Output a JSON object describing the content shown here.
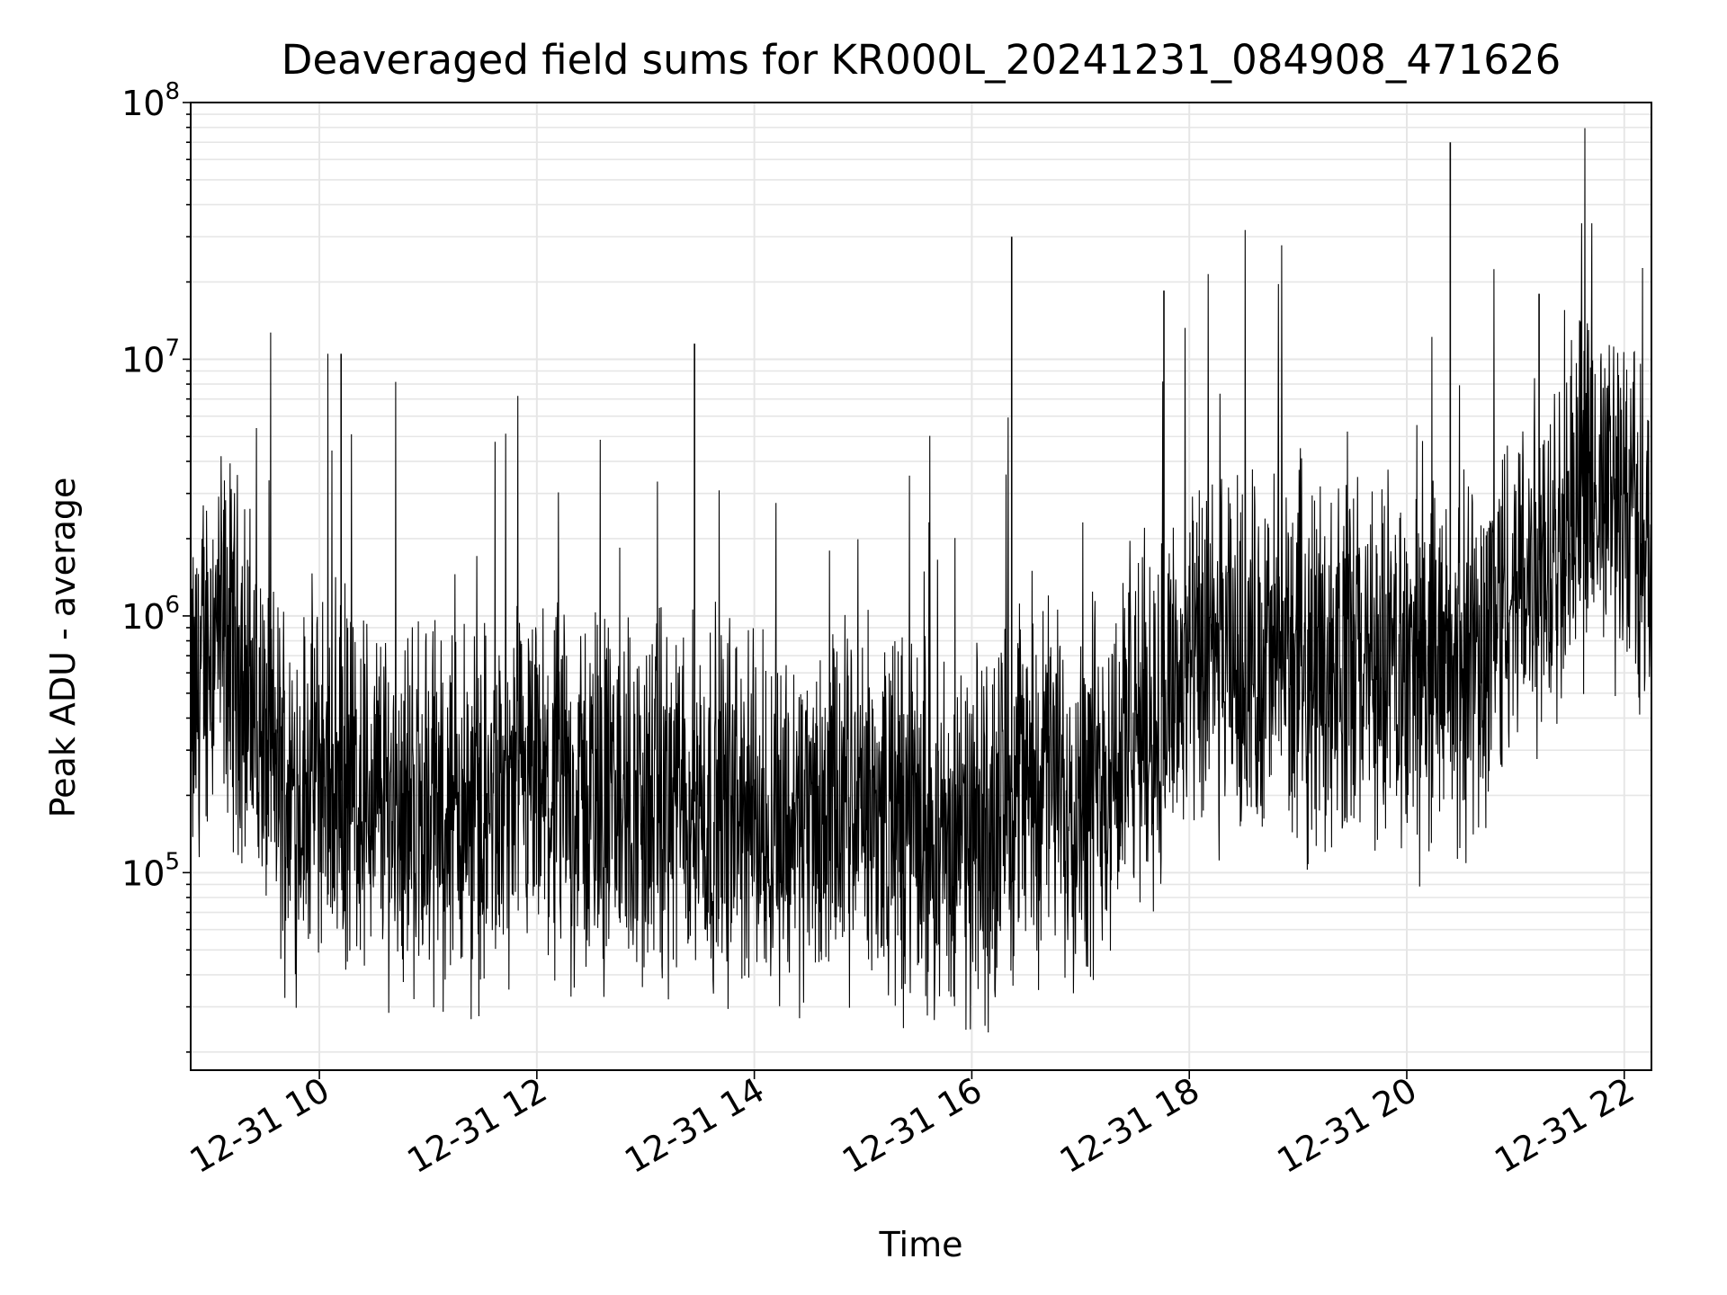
{
  "chart_data": {
    "type": "line",
    "title": "Deaveraged field sums for KR000L_20241231_084908_471626",
    "xlabel": "Time",
    "ylabel": "Peak ADU - average",
    "y_scale": "log",
    "ylim": [
      17000,
      100000000
    ],
    "xlim": [
      "2024-12-31 08:49",
      "2024-12-31 22:15"
    ],
    "x_ticks": [
      "12-31 10",
      "12-31 12",
      "12-31 14",
      "12-31 16",
      "12-31 18",
      "12-31 20",
      "12-31 22"
    ],
    "y_ticks": [
      {
        "base": "10",
        "exp": "5"
      },
      {
        "base": "10",
        "exp": "6"
      },
      {
        "base": "10",
        "exp": "7"
      },
      {
        "base": "10",
        "exp": "8"
      }
    ],
    "grid": true,
    "line_color": "#000000",
    "series": [
      {
        "x": [
          "2024-12-31 08:50",
          "2024-12-31 09:00",
          "2024-12-31 09:15",
          "2024-12-31 09:30",
          "2024-12-31 09:45",
          "2024-12-31 10:00",
          "2024-12-31 10:30",
          "2024-12-31 11:00",
          "2024-12-31 11:30",
          "2024-12-31 12:00",
          "2024-12-31 12:30",
          "2024-12-31 13:00",
          "2024-12-31 13:30",
          "2024-12-31 14:00",
          "2024-12-31 14:30",
          "2024-12-31 15:00",
          "2024-12-31 15:30",
          "2024-12-31 16:00",
          "2024-12-31 16:30",
          "2024-12-31 17:00",
          "2024-12-31 17:30",
          "2024-12-31 18:00",
          "2024-12-31 18:30",
          "2024-12-31 19:00",
          "2024-12-31 19:30",
          "2024-12-31 20:00",
          "2024-12-31 20:30",
          "2024-12-31 21:00",
          "2024-12-31 21:30",
          "2024-12-31 22:00",
          "2024-12-31 22:15"
        ],
        "y": [
          400000,
          900000,
          700000,
          300000,
          200000,
          250000,
          200000,
          180000,
          170000,
          190000,
          200000,
          180000,
          190000,
          170000,
          160000,
          180000,
          150000,
          120000,
          250000,
          200000,
          350000,
          600000,
          650000,
          700000,
          650000,
          600000,
          600000,
          1200000,
          2500000,
          3000000,
          1500000
        ]
      }
    ],
    "spikes": [
      {
        "x": "2024-12-31 16:22",
        "y": 30000000
      },
      {
        "x": "2024-12-31 20:24",
        "y": 70000000
      },
      {
        "x": "2024-12-31 13:27",
        "y": 11500000
      },
      {
        "x": "2024-12-31 17:46",
        "y": 18500000
      },
      {
        "x": "2024-12-31 21:13",
        "y": 18000000
      },
      {
        "x": "2024-12-31 10:12",
        "y": 10500000
      }
    ]
  }
}
